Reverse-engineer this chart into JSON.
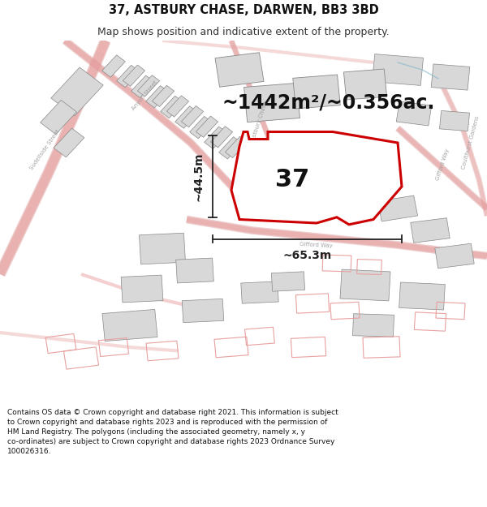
{
  "title_line1": "37, ASTBURY CHASE, DARWEN, BB3 3BD",
  "title_line2": "Map shows position and indicative extent of the property.",
  "area_label": "~1442m²/~0.356ac.",
  "plot_number": "37",
  "dim_height": "~44.5m",
  "dim_width": "~65.3m",
  "footer_text_lines": [
    "Contains OS data © Crown copyright and database right 2021. This information is subject to Crown copyright and database rights 2023 and is reproduced with the permission of",
    "HM Land Registry. The polygons (including the associated geometry, namely x, y co-ordinates) are subject to Crown copyright and database rights 2023 Ordnance Survey",
    "100026316."
  ],
  "bg_color": "#ffffff",
  "map_bg": "#ffffff",
  "road_color": "#e8a0a0",
  "road_outline": "#d48080",
  "building_fill": "#d8d8d8",
  "building_stroke": "#b08080",
  "building_stroke_dark": "#888888",
  "plot_stroke": "#cc0000",
  "plot_fill": "#ffffff",
  "annotation_color": "#111111",
  "title_color": "#111111",
  "subtitle_color": "#333333",
  "footer_color": "#111111",
  "label_road_color": "#999999",
  "title_fontsize": 10.5,
  "subtitle_fontsize": 9,
  "area_fontsize": 17,
  "number_fontsize": 22,
  "dim_fontsize": 10,
  "road_label_fontsize": 5,
  "footer_fontsize": 6.5
}
